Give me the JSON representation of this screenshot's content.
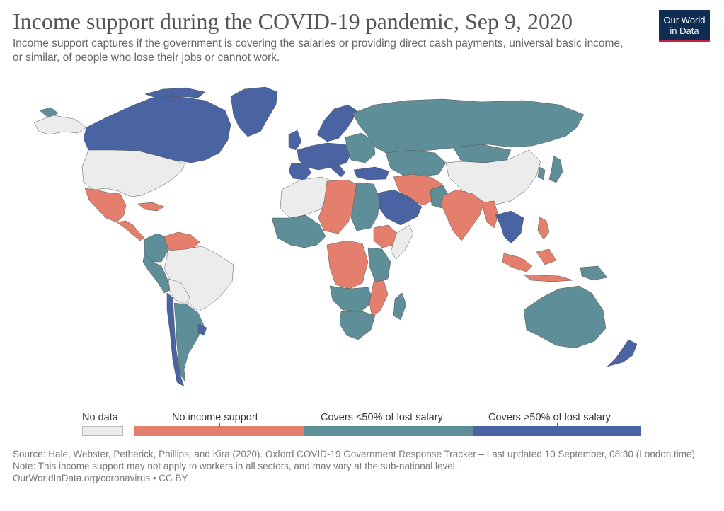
{
  "header": {
    "title": "Income support during the COVID-19 pandemic, Sep 9, 2020",
    "subtitle": "Income support captures if the government is covering the salaries or providing direct cash payments, universal basic income, or similar, of people who lose their jobs or cannot work."
  },
  "logo": {
    "line1": "Our World",
    "line2": "in Data"
  },
  "colors": {
    "no_data": "#ececec",
    "no_support": "#e37f6c",
    "under_50": "#5e8f98",
    "over_50": "#4a64a3",
    "ocean": "#ffffff"
  },
  "legend": {
    "no_data": "No data",
    "no_support": "No income support",
    "under_50": "Covers <50% of lost salary",
    "over_50": "Covers >50% of lost salary"
  },
  "footer": {
    "source": "Source: Hale, Webster, Petherick, Phillips, and Kira (2020). Oxford COVID-19 Government Response Tracker – Last updated 10 September, 08:30 (London time)",
    "note": "Note: This income support may not apply to workers in all sectors, and may vary at the sub-national level.",
    "credit": "OurWorldInData.org/coronavirus • CC BY"
  },
  "map_regions": [
    {
      "name": "greenland",
      "category": "over_50"
    },
    {
      "name": "canada",
      "category": "over_50"
    },
    {
      "name": "usa",
      "category": "no_data"
    },
    {
      "name": "mexico",
      "category": "no_support"
    },
    {
      "name": "central-america",
      "category": "no_support"
    },
    {
      "name": "caribbean",
      "category": "no_support"
    },
    {
      "name": "colombia",
      "category": "under_50"
    },
    {
      "name": "venezuela",
      "category": "no_support"
    },
    {
      "name": "brazil",
      "category": "no_data"
    },
    {
      "name": "peru-ecuador",
      "category": "under_50"
    },
    {
      "name": "bolivia",
      "category": "no_data"
    },
    {
      "name": "chile",
      "category": "over_50"
    },
    {
      "name": "argentina",
      "category": "under_50"
    },
    {
      "name": "uruguay",
      "category": "over_50"
    },
    {
      "name": "iceland",
      "category": "under_50"
    },
    {
      "name": "scandinavia",
      "category": "over_50"
    },
    {
      "name": "western-europe",
      "category": "over_50"
    },
    {
      "name": "iberia",
      "category": "over_50"
    },
    {
      "name": "uk",
      "category": "over_50"
    },
    {
      "name": "eastern-europe",
      "category": "under_50"
    },
    {
      "name": "russia",
      "category": "under_50"
    },
    {
      "name": "kazakhstan-central-asia",
      "category": "under_50"
    },
    {
      "name": "mongolia",
      "category": "under_50"
    },
    {
      "name": "china",
      "category": "no_data"
    },
    {
      "name": "turkey",
      "category": "over_50"
    },
    {
      "name": "iran-afghanistan",
      "category": "no_support"
    },
    {
      "name": "saudi-arabia",
      "category": "over_50"
    },
    {
      "name": "india",
      "category": "no_support"
    },
    {
      "name": "pakistan",
      "category": "under_50"
    },
    {
      "name": "southeast-asia",
      "category": "over_50"
    },
    {
      "name": "myanmar",
      "category": "no_support"
    },
    {
      "name": "indonesia",
      "category": "no_support"
    },
    {
      "name": "philippines",
      "category": "no_support"
    },
    {
      "name": "japan",
      "category": "under_50"
    },
    {
      "name": "australia",
      "category": "under_50"
    },
    {
      "name": "new-zealand",
      "category": "over_50"
    },
    {
      "name": "png",
      "category": "under_50"
    },
    {
      "name": "north-africa",
      "category": "no_data"
    },
    {
      "name": "libya-niger-chad",
      "category": "no_support"
    },
    {
      "name": "egypt-sudan",
      "category": "under_50"
    },
    {
      "name": "west-africa",
      "category": "under_50"
    },
    {
      "name": "ethiopia",
      "category": "no_support"
    },
    {
      "name": "somalia",
      "category": "no_data"
    },
    {
      "name": "central-africa",
      "category": "no_support"
    },
    {
      "name": "east-africa",
      "category": "under_50"
    },
    {
      "name": "angola-zambia",
      "category": "under_50"
    },
    {
      "name": "mozambique",
      "category": "no_support"
    },
    {
      "name": "southern-africa",
      "category": "under_50"
    },
    {
      "name": "madagascar",
      "category": "under_50"
    }
  ]
}
